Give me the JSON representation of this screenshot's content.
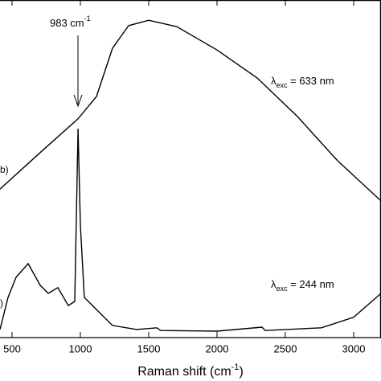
{
  "chart_data": {
    "type": "line",
    "x_label": {
      "text": "Raman shift (cm",
      "sup": "-1",
      "tail": ")"
    },
    "xlim": [
      412,
      3200
    ],
    "xticks": [
      500,
      1000,
      1500,
      2000,
      2500,
      3000
    ],
    "ylim": [
      0,
      100
    ],
    "series": [
      {
        "color": "#000000",
        "x": [
          412,
          706,
          983,
          1118,
          1235,
          1353,
          1500,
          1706,
          2000,
          2294,
          2588,
          2882,
          3200
        ],
        "values": [
          44.0,
          54.8,
          64.8,
          71.4,
          85.7,
          92.4,
          94.0,
          92.1,
          85.2,
          76.9,
          65.5,
          52.4,
          40.5
        ]
      },
      {
        "color": "#000000",
        "x": [
          412,
          471,
          530,
          618,
          706,
          765,
          835,
          912,
          959,
          983,
          1000,
          1029,
          1118,
          1235,
          1412,
          1559,
          1588,
          2000,
          2329,
          2353,
          2764,
          2999,
          3200
        ],
        "values": [
          2.4,
          11.9,
          17.9,
          21.9,
          15.5,
          13.1,
          14.8,
          9.5,
          10.7,
          61.9,
          33.3,
          11.9,
          8.3,
          3.6,
          2.4,
          2.9,
          2.1,
          1.9,
          3.1,
          2.1,
          2.9,
          6.0,
          13.1
        ]
      }
    ],
    "annotations": [
      {
        "text": "983 cm",
        "sup": "-1"
      },
      {
        "text": "λ",
        "sub": "exc",
        "tail": " = 633 nm"
      },
      {
        "text": "λ",
        "sub": "exc",
        "tail": " = 244 nm"
      },
      {
        "text": "b)"
      },
      {
        "text": ")"
      }
    ]
  }
}
